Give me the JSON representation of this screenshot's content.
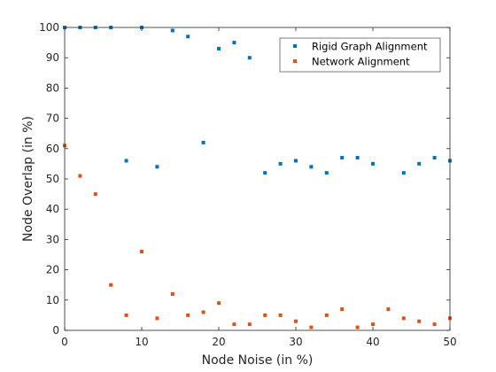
{
  "chart_data": {
    "type": "scatter",
    "title": "",
    "xlabel": "Node Noise (in %)",
    "ylabel": "Node Overlap (in %)",
    "xlim": [
      0,
      50
    ],
    "ylim": [
      0,
      100
    ],
    "xticks": [
      0,
      10,
      20,
      30,
      40,
      50
    ],
    "yticks": [
      0,
      10,
      20,
      30,
      40,
      50,
      60,
      70,
      80,
      90,
      100
    ],
    "grid": false,
    "legend_position": "top-right",
    "series": [
      {
        "name": "Rigid Graph Alignment",
        "color": "#0072BD",
        "x": [
          0,
          2,
          4,
          6,
          8,
          10,
          12,
          14,
          16,
          18,
          20,
          22,
          24,
          26,
          28,
          30,
          32,
          34,
          36,
          38,
          40,
          42,
          44,
          46,
          48,
          50
        ],
        "y": [
          100,
          100,
          100,
          100,
          56,
          100,
          54,
          99,
          97,
          62,
          93,
          95,
          90,
          52,
          55,
          56,
          54,
          52,
          57,
          57,
          55,
          null,
          52,
          55,
          57,
          56
        ]
      },
      {
        "name": "Network Alignment",
        "color": "#D95319",
        "x": [
          0,
          2,
          4,
          6,
          8,
          10,
          12,
          14,
          16,
          18,
          20,
          22,
          24,
          26,
          28,
          30,
          32,
          34,
          36,
          38,
          40,
          42,
          44,
          46,
          48,
          50
        ],
        "y": [
          61,
          51,
          45,
          15,
          5,
          26,
          4,
          12,
          5,
          6,
          9,
          2,
          2,
          5,
          5,
          3,
          1,
          5,
          7,
          1,
          2,
          7,
          4,
          3,
          2,
          4
        ]
      }
    ]
  }
}
